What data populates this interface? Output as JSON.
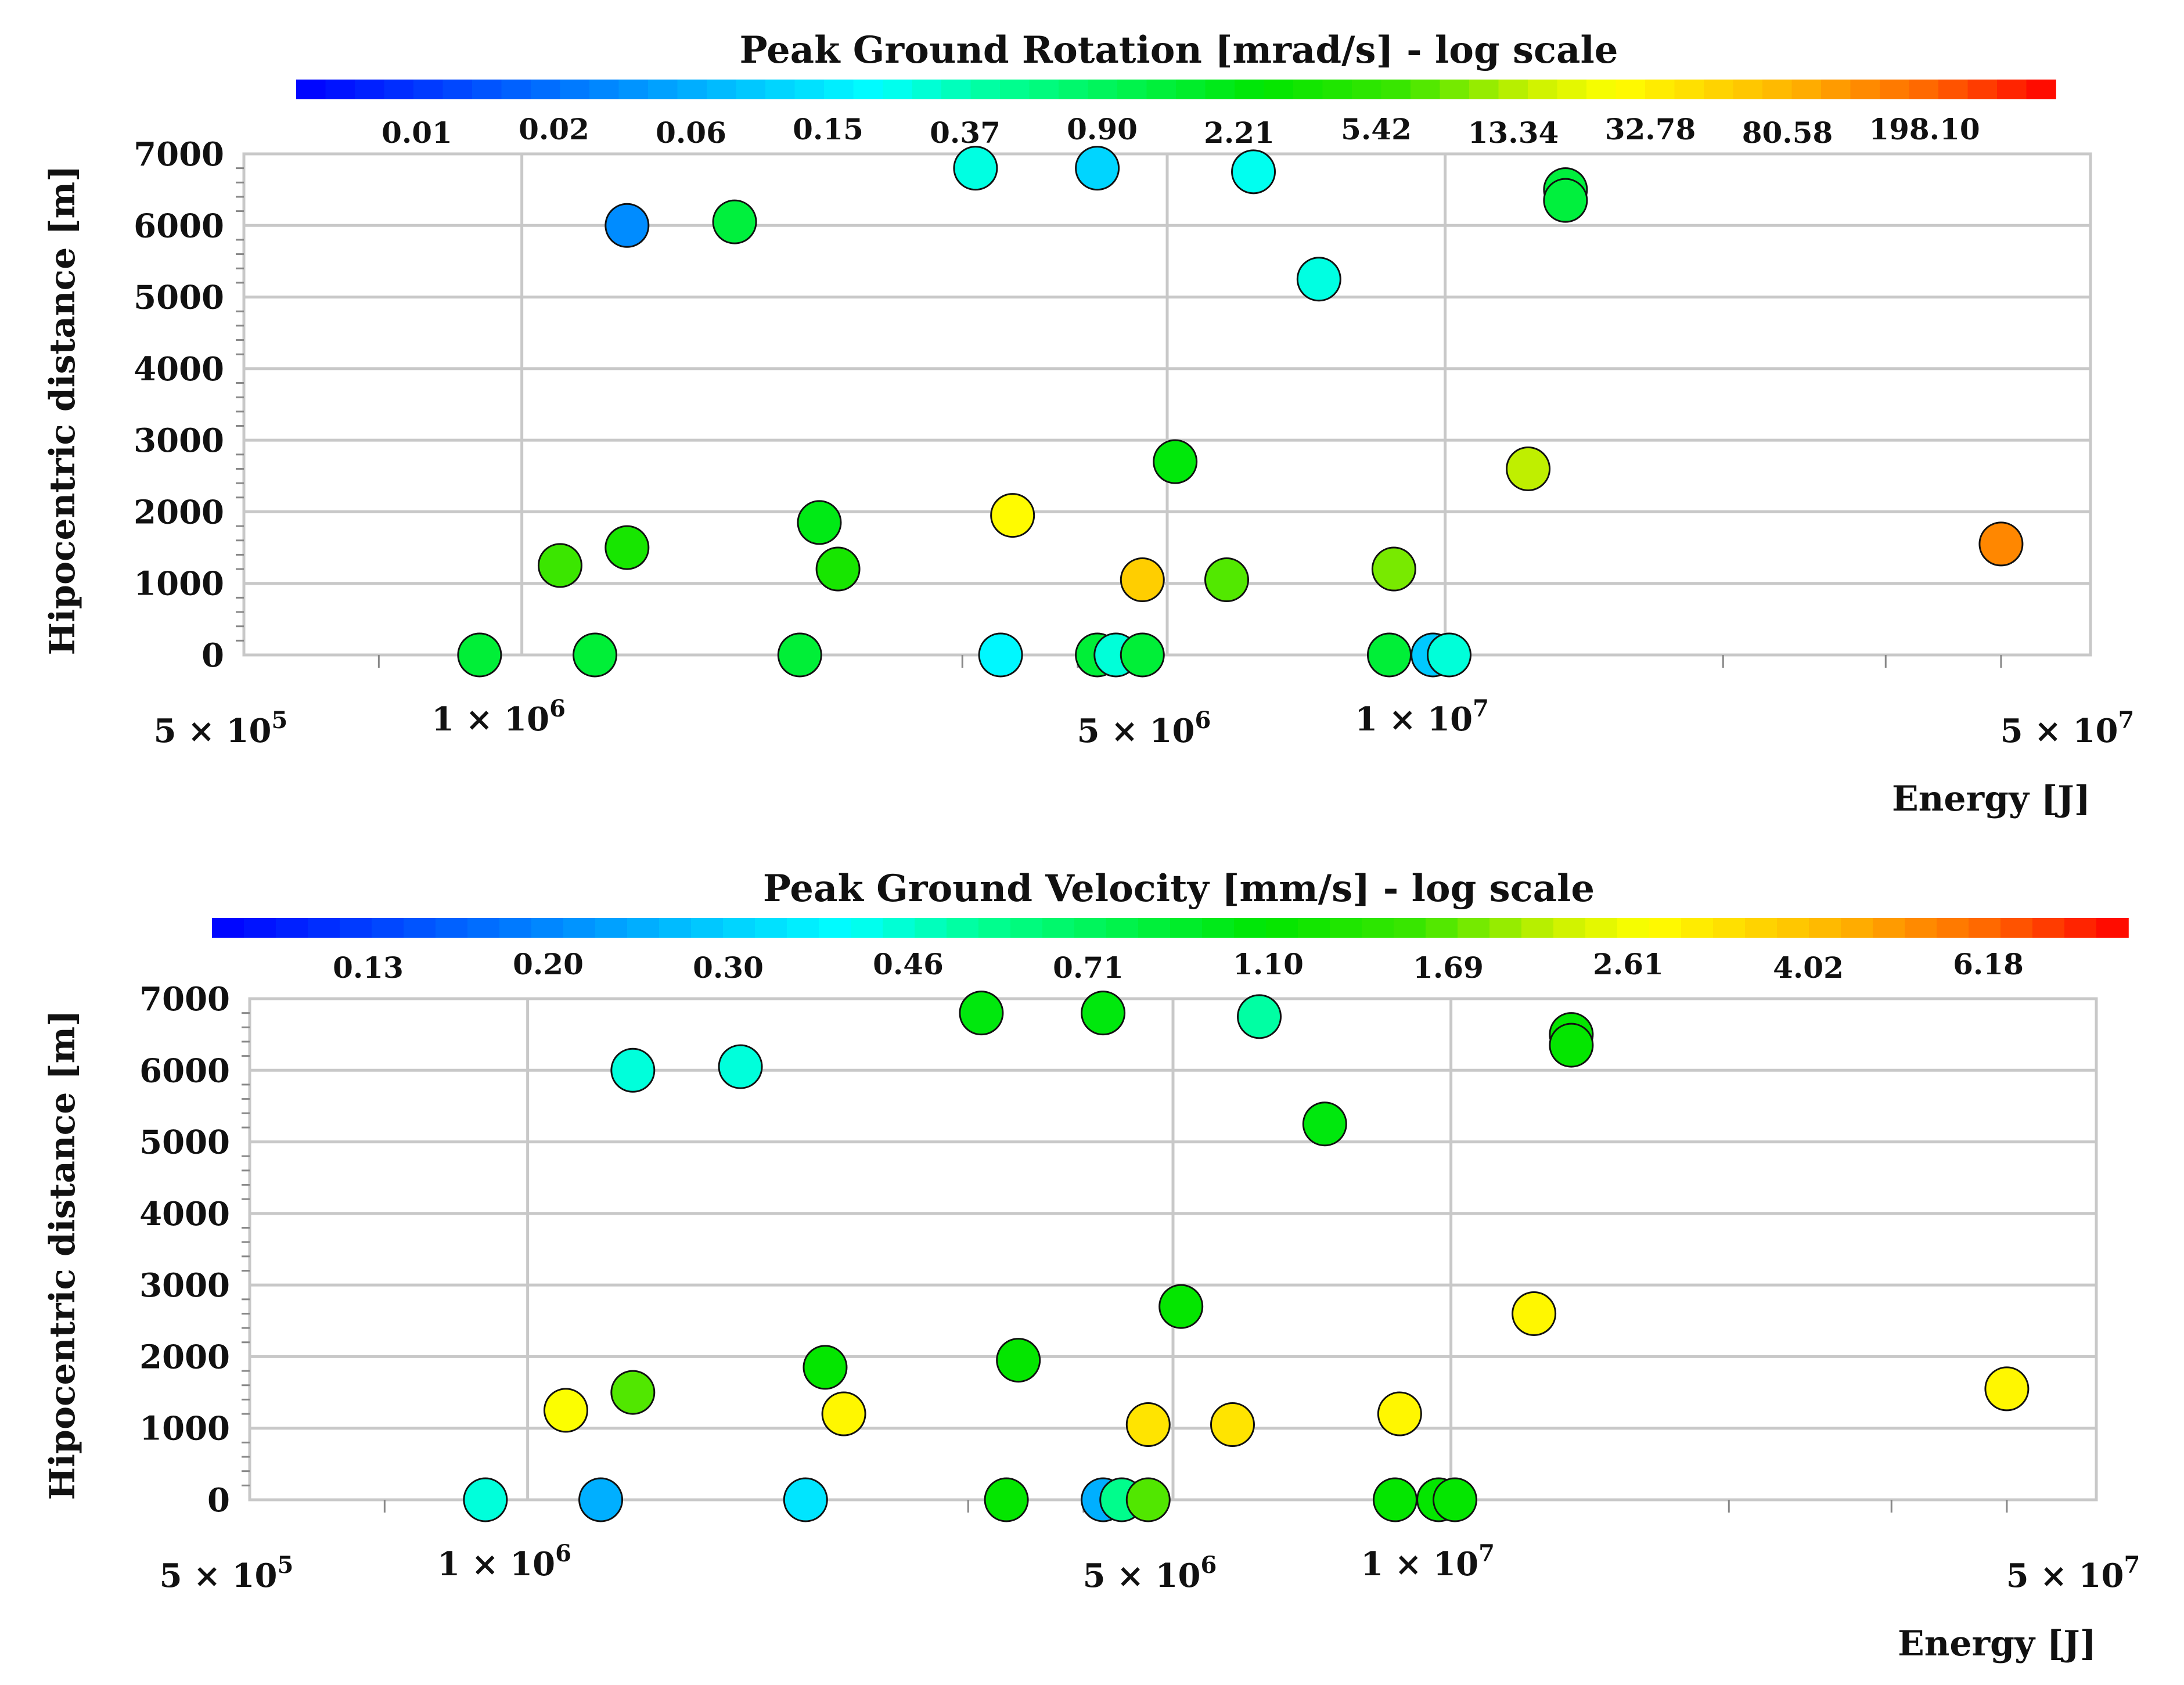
{
  "chart_data": [
    {
      "type": "scatter",
      "title": "Peak Ground Rotation [mrad/s] - log scale",
      "xlabel": "Energy [J]",
      "ylabel": "Hipocentric distance [m]",
      "xscale": "log",
      "xlim": [
        500000,
        50000000
      ],
      "ylim": [
        0,
        7000
      ],
      "x_major_ticks": [
        1000000,
        5000000,
        10000000
      ],
      "x_minor_ticks": [
        700000,
        2000000,
        3000000,
        4000000,
        20000000,
        30000000,
        40000000
      ],
      "x_tick_labels": [
        {
          "x": 500000,
          "base": "5 × 10",
          "exp": "5"
        },
        {
          "x": 1000000,
          "base": "1 × 10",
          "exp": "6"
        },
        {
          "x": 5000000,
          "base": "5 × 10",
          "exp": "6"
        },
        {
          "x": 10000000,
          "base": "1 × 10",
          "exp": "7"
        },
        {
          "x": 50000000,
          "base": "5 × 10",
          "exp": "7"
        }
      ],
      "y_ticks": [
        0,
        1000,
        2000,
        3000,
        4000,
        5000,
        6000,
        7000
      ],
      "y_tick_labels": [
        "0",
        "1000",
        "2000",
        "3000",
        "4000",
        "5000",
        "6000",
        "7000"
      ],
      "grid": true,
      "colorbar": {
        "scale": "log",
        "range": [
          0.005,
          500
        ],
        "tick_labels": [
          "0.01",
          "0.02",
          "0.06",
          "0.15",
          "0.37",
          "0.90",
          "2.21",
          "5.42",
          "13.34",
          "32.78",
          "80.58",
          "198.10"
        ]
      },
      "points": [
        {
          "x": 1300000,
          "y": 6000,
          "c": 0.04
        },
        {
          "x": 1700000,
          "y": 6050,
          "c": 1.4
        },
        {
          "x": 3100000,
          "y": 6800,
          "c": 0.28
        },
        {
          "x": 4200000,
          "y": 6800,
          "c": 0.12
        },
        {
          "x": 6200000,
          "y": 6750,
          "c": 0.25
        },
        {
          "x": 7300000,
          "y": 5250,
          "c": 0.28
        },
        {
          "x": 13500000,
          "y": 6500,
          "c": 1.4
        },
        {
          "x": 13500000,
          "y": 6350,
          "c": 1.4
        },
        {
          "x": 5100000,
          "y": 2700,
          "c": 2.5
        },
        {
          "x": 12300000,
          "y": 2600,
          "c": 15
        },
        {
          "x": 1100000,
          "y": 1250,
          "c": 7
        },
        {
          "x": 1300000,
          "y": 1500,
          "c": 4
        },
        {
          "x": 2100000,
          "y": 1850,
          "c": 2.2
        },
        {
          "x": 2200000,
          "y": 1200,
          "c": 4
        },
        {
          "x": 3400000,
          "y": 1950,
          "c": 30
        },
        {
          "x": 4700000,
          "y": 1050,
          "c": 60
        },
        {
          "x": 5800000,
          "y": 1050,
          "c": 8
        },
        {
          "x": 8800000,
          "y": 1200,
          "c": 10
        },
        {
          "x": 40000000,
          "y": 1550,
          "c": 150
        },
        {
          "x": 900000,
          "y": 0,
          "c": 1.5
        },
        {
          "x": 1200000,
          "y": 0,
          "c": 1.5
        },
        {
          "x": 2000000,
          "y": 0,
          "c": 1.5
        },
        {
          "x": 3300000,
          "y": 0,
          "c": 0.2
        },
        {
          "x": 4200000,
          "y": 0,
          "c": 1.5
        },
        {
          "x": 4400000,
          "y": 0,
          "c": 0.3
        },
        {
          "x": 4700000,
          "y": 0,
          "c": 1.5
        },
        {
          "x": 8700000,
          "y": 0,
          "c": 1.5
        },
        {
          "x": 9700000,
          "y": 0,
          "c": 0.1
        },
        {
          "x": 10100000,
          "y": 0,
          "c": 0.3
        }
      ]
    },
    {
      "type": "scatter",
      "title": "Peak Ground Velocity [mm/s] - log scale",
      "xlabel": "Energy [J]",
      "ylabel": "Hipocentric distance [m]",
      "xscale": "log",
      "xlim": [
        500000,
        50000000
      ],
      "ylim": [
        0,
        7000
      ],
      "x_major_ticks": [
        1000000,
        5000000,
        10000000
      ],
      "x_minor_ticks": [
        700000,
        2000000,
        3000000,
        4000000,
        20000000,
        30000000,
        40000000
      ],
      "x_tick_labels": [
        {
          "x": 500000,
          "base": "5 × 10",
          "exp": "5"
        },
        {
          "x": 1000000,
          "base": "1 × 10",
          "exp": "6"
        },
        {
          "x": 5000000,
          "base": "5 × 10",
          "exp": "6"
        },
        {
          "x": 10000000,
          "base": "1 × 10",
          "exp": "7"
        },
        {
          "x": 50000000,
          "base": "5 × 10",
          "exp": "7"
        }
      ],
      "y_ticks": [
        0,
        1000,
        2000,
        3000,
        4000,
        5000,
        6000,
        7000
      ],
      "y_tick_labels": [
        "0",
        "1000",
        "2000",
        "3000",
        "4000",
        "5000",
        "6000",
        "7000"
      ],
      "grid": true,
      "colorbar": {
        "scale": "log",
        "range": [
          0.085,
          10
        ],
        "tick_labels": [
          "0.13",
          "0.20",
          "0.30",
          "0.46",
          "0.71",
          "1.10",
          "1.69",
          "2.61",
          "4.02",
          "6.18"
        ]
      },
      "points": [
        {
          "x": 1300000,
          "y": 6000,
          "c": 0.46
        },
        {
          "x": 1700000,
          "y": 6050,
          "c": 0.46
        },
        {
          "x": 3100000,
          "y": 6800,
          "c": 1.1
        },
        {
          "x": 4200000,
          "y": 6800,
          "c": 1.1
        },
        {
          "x": 6200000,
          "y": 6750,
          "c": 0.55
        },
        {
          "x": 7300000,
          "y": 5250,
          "c": 1.1
        },
        {
          "x": 13500000,
          "y": 6500,
          "c": 1.2
        },
        {
          "x": 13500000,
          "y": 6350,
          "c": 1.2
        },
        {
          "x": 5100000,
          "y": 2700,
          "c": 1.2
        },
        {
          "x": 12300000,
          "y": 2600,
          "c": 3.2
        },
        {
          "x": 1100000,
          "y": 1250,
          "c": 3.0
        },
        {
          "x": 1300000,
          "y": 1500,
          "c": 1.8
        },
        {
          "x": 2100000,
          "y": 1850,
          "c": 1.2
        },
        {
          "x": 2200000,
          "y": 1200,
          "c": 3.2
        },
        {
          "x": 3400000,
          "y": 1950,
          "c": 1.2
        },
        {
          "x": 4700000,
          "y": 1050,
          "c": 3.6
        },
        {
          "x": 5800000,
          "y": 1050,
          "c": 3.6
        },
        {
          "x": 8800000,
          "y": 1200,
          "c": 3.2
        },
        {
          "x": 40000000,
          "y": 1550,
          "c": 3.2
        },
        {
          "x": 900000,
          "y": 0,
          "c": 0.46
        },
        {
          "x": 1200000,
          "y": 0,
          "c": 0.25
        },
        {
          "x": 2000000,
          "y": 0,
          "c": 0.35
        },
        {
          "x": 3300000,
          "y": 0,
          "c": 1.2
        },
        {
          "x": 4200000,
          "y": 0,
          "c": 0.25
        },
        {
          "x": 4400000,
          "y": 0,
          "c": 0.6
        },
        {
          "x": 4700000,
          "y": 0,
          "c": 1.8
        },
        {
          "x": 8700000,
          "y": 0,
          "c": 1.2
        },
        {
          "x": 9700000,
          "y": 0,
          "c": 1.2
        },
        {
          "x": 10100000,
          "y": 0,
          "c": 1.2
        }
      ]
    }
  ]
}
